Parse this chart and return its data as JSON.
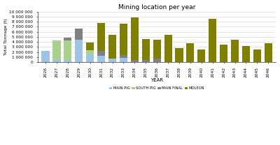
{
  "title": "Mining location per year",
  "xlabel": "YEAR",
  "ylabel": "Total Tonnage (t)",
  "years": [
    2026,
    2027,
    2028,
    2029,
    2030,
    2031,
    2032,
    2033,
    2034,
    2035,
    2036,
    2037,
    2038,
    2039,
    2040,
    2041,
    2042,
    2043,
    2044,
    2045,
    2046
  ],
  "main_pig": [
    2200000,
    500000,
    500000,
    4500000,
    1500000,
    1200000,
    700000,
    900000,
    0,
    0,
    0,
    0,
    0,
    0,
    0,
    0,
    0,
    0,
    0,
    0,
    0
  ],
  "south_pig": [
    0,
    3800000,
    3800000,
    0,
    900000,
    0,
    0,
    0,
    0,
    0,
    0,
    0,
    0,
    0,
    0,
    0,
    0,
    0,
    0,
    0,
    0
  ],
  "main_final": [
    0,
    0,
    500000,
    2200000,
    0,
    1000000,
    0,
    500000,
    500000,
    400000,
    700000,
    0,
    0,
    0,
    0,
    0,
    0,
    0,
    0,
    0,
    0
  ],
  "moleon": [
    0,
    0,
    0,
    0,
    1500000,
    5500000,
    4700000,
    6200000,
    8300000,
    4200000,
    3800000,
    5400000,
    2800000,
    3700000,
    2500000,
    8600000,
    3500000,
    4400000,
    3200000,
    2500000,
    3700000
  ],
  "color_main_pig": "#9dc3e6",
  "color_south_pig": "#a9d18e",
  "color_main_final": "#808080",
  "color_moleon": "#808000",
  "ylim": [
    0,
    10000000
  ],
  "yticks": [
    0,
    1000000,
    2000000,
    3000000,
    4000000,
    5000000,
    6000000,
    7000000,
    8000000,
    9000000,
    10000000
  ],
  "legend_labels": [
    "MAIN PIG",
    "SOUTH PIG",
    "MAIN FINAL",
    "MOLEON"
  ],
  "background_color": "#ffffff",
  "grid_color": "#d9d9d9"
}
